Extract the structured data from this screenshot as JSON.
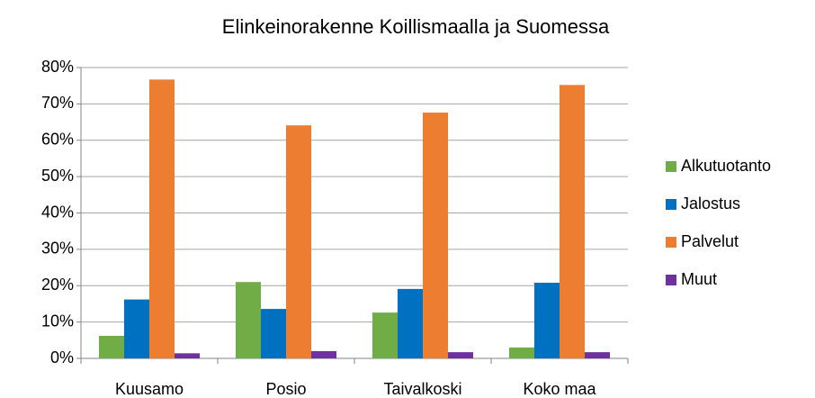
{
  "chart_data": {
    "type": "bar",
    "title": "Elinkeinorakenne Koillismaalla ja Suomessa",
    "categories": [
      "Kuusamo",
      "Posio",
      "Taivalkoski",
      "Koko maa"
    ],
    "series": [
      {
        "name": "Alkutuotanto",
        "color": "#70ad47",
        "values": [
          6.2,
          21,
          12.6,
          3
        ]
      },
      {
        "name": "Jalostus",
        "color": "#0070c0",
        "values": [
          16.2,
          13.6,
          19.1,
          20.8
        ]
      },
      {
        "name": "Palvelut",
        "color": "#ed7d31",
        "values": [
          76.7,
          64.1,
          67.6,
          75.2
        ]
      },
      {
        "name": "Muut",
        "color": "#7030a0",
        "values": [
          1.4,
          2,
          1.7,
          1.7
        ]
      }
    ],
    "ylim": [
      0,
      80
    ],
    "yticks": [
      {
        "value": 0,
        "label": "0%"
      },
      {
        "value": 10,
        "label": "10%"
      },
      {
        "value": 20,
        "label": "20%"
      },
      {
        "value": 30,
        "label": "30%"
      },
      {
        "value": 40,
        "label": "40%"
      },
      {
        "value": 50,
        "label": "50%"
      },
      {
        "value": 60,
        "label": "60%"
      },
      {
        "value": 70,
        "label": "70%"
      },
      {
        "value": 80,
        "label": "80%"
      }
    ],
    "grid": true,
    "legend": "right"
  }
}
